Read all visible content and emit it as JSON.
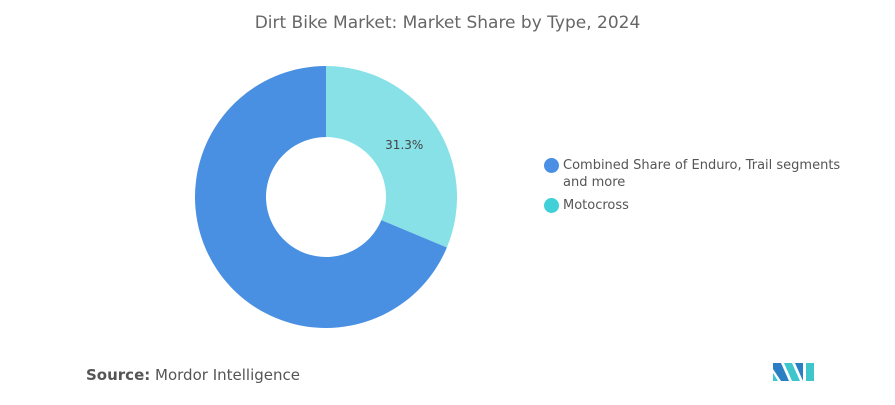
{
  "chart_data": {
    "type": "pie",
    "title": "Dirt Bike Market: Market Share by Type, 2024",
    "donut": true,
    "slices": [
      {
        "name": "Motocross",
        "value": 31.3,
        "label": "31.3%",
        "color": "#87e1e7",
        "legend_color": "#3fd0d8"
      },
      {
        "name": "Combined Share of Enduro, Trail segments and more",
        "value": 68.7,
        "label": "",
        "color": "#4a90e2",
        "legend_color": "#4a8fe3"
      }
    ],
    "legend_order": [
      "Combined Share of Enduro, Trail segments and more",
      "Motocross"
    ],
    "legend_position": "right"
  },
  "source": {
    "label": "Source:",
    "value": "Mordor Intelligence"
  }
}
